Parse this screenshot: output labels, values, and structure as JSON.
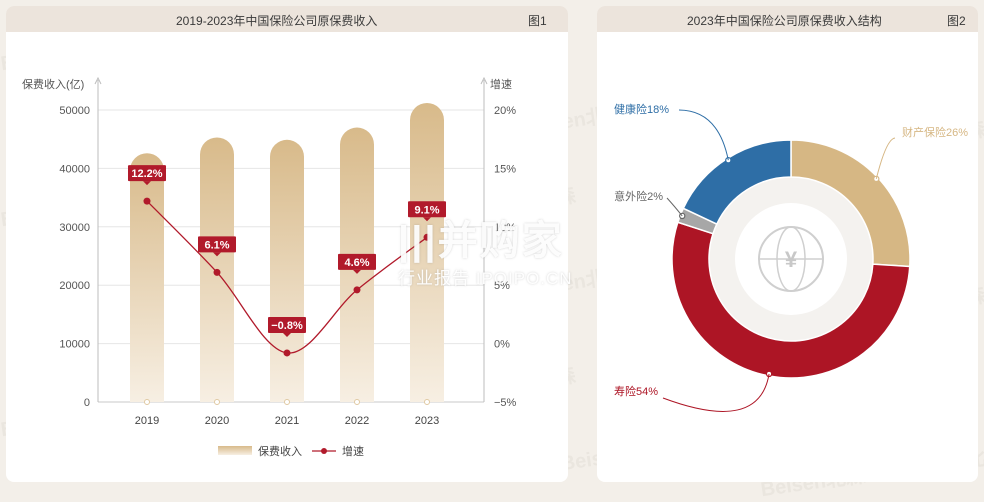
{
  "panel1": {
    "title": "2019-2023年中国保险公司原保费收入",
    "fig": "图1"
  },
  "panel2": {
    "title": "2023年中国保险公司原保费收入结构",
    "fig": "图2"
  },
  "watermark": {
    "text": "Beisen北森"
  },
  "brand": {
    "line1": "|||并购家",
    "line2": "行业报告 IPOIPO.CN"
  },
  "colors": {
    "bar_top": "#d8ba8a",
    "bar_bottom": "#f7efe3",
    "line": "#b11a2b",
    "life": "#ad1525",
    "property": "#d6b784",
    "health": "#2e6ea6",
    "accident": "#a7a7a7"
  },
  "chart_data": [
    {
      "type": "bar",
      "categories": [
        "2019",
        "2020",
        "2021",
        "2022",
        "2023"
      ],
      "series": [
        {
          "name": "保费收入",
          "type": "bar",
          "axis": "left",
          "values": [
            42600,
            45300,
            44900,
            47000,
            51200
          ]
        },
        {
          "name": "增速",
          "type": "line",
          "axis": "right",
          "values": [
            12.2,
            6.1,
            -0.8,
            4.6,
            9.1
          ],
          "labels": [
            "12.2%",
            "6.1%",
            "−0.8%",
            "4.6%",
            "9.1%"
          ]
        }
      ],
      "ylabel_left": "保费收入(亿)",
      "ylabel_right": "增速",
      "ylim_left": [
        0,
        50000
      ],
      "ylim_right": [
        -5,
        20
      ],
      "yticks_left": [
        "0",
        "10000",
        "20000",
        "30000",
        "40000",
        "50000"
      ],
      "yticks_right": [
        "−5%",
        "0%",
        "5%",
        "10%",
        "15%",
        "20%"
      ],
      "legend": [
        "保费收入",
        "增速"
      ],
      "legend_position": "bottom"
    },
    {
      "type": "pie",
      "style": "donut",
      "slices": [
        {
          "label": "财产保险",
          "value": 26,
          "display": "财产保险26%"
        },
        {
          "label": "寿险",
          "value": 54,
          "display": "寿险54%"
        },
        {
          "label": "意外险",
          "value": 2,
          "display": "意外险2%"
        },
        {
          "label": "健康险",
          "value": 18,
          "display": "健康险18%"
        }
      ]
    }
  ]
}
